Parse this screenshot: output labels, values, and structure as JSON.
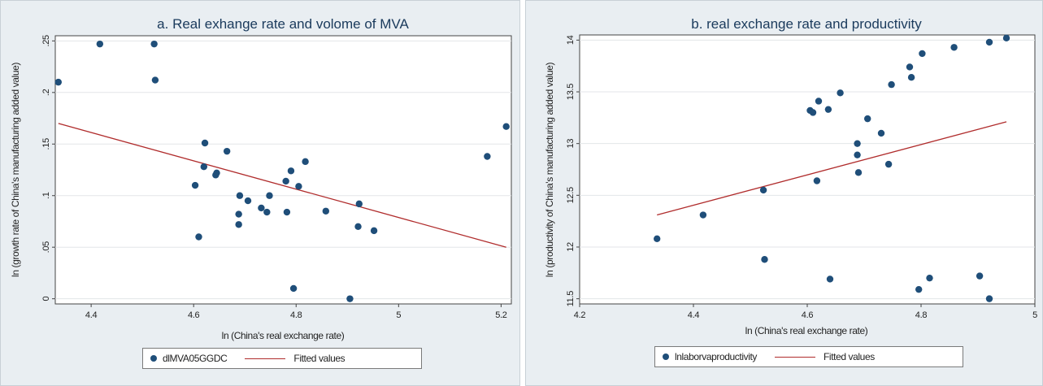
{
  "chart_data": [
    {
      "type": "scatter",
      "title": "a. Real exhange rate and volome of MVA",
      "xlabel": "ln (China's real exchange rate)",
      "ylabel": "ln (growth rate of China's manufacturing added value)",
      "xlim": [
        4.33,
        5.22
      ],
      "ylim": [
        -0.005,
        0.255
      ],
      "xticks": [
        4.4,
        4.6,
        4.8,
        5,
        5.2
      ],
      "xtick_labels": [
        "4.4",
        "4.6",
        "4.8",
        "5",
        "5.2"
      ],
      "yticks": [
        0,
        0.05,
        0.1,
        0.15,
        0.2,
        0.25
      ],
      "ytick_labels": [
        "0",
        ".05",
        ".1",
        ".15",
        ".2",
        ".25"
      ],
      "grid": true,
      "legend_position": "bottom",
      "series": [
        {
          "name": "dlMVA05GGDC",
          "kind": "points",
          "color": "#1f4e79",
          "points": [
            [
              4.336,
              0.21
            ],
            [
              4.417,
              0.247
            ],
            [
              4.523,
              0.247
            ],
            [
              4.525,
              0.212
            ],
            [
              4.622,
              0.151
            ],
            [
              4.62,
              0.128
            ],
            [
              4.643,
              0.12
            ],
            [
              4.645,
              0.122
            ],
            [
              4.665,
              0.143
            ],
            [
              4.603,
              0.11
            ],
            [
              4.61,
              0.06
            ],
            [
              4.69,
              0.1
            ],
            [
              4.688,
              0.082
            ],
            [
              4.688,
              0.072
            ],
            [
              4.706,
              0.095
            ],
            [
              4.732,
              0.088
            ],
            [
              4.743,
              0.084
            ],
            [
              4.748,
              0.1
            ],
            [
              4.78,
              0.114
            ],
            [
              4.79,
              0.124
            ],
            [
              4.782,
              0.084
            ],
            [
              4.805,
              0.109
            ],
            [
              4.818,
              0.133
            ],
            [
              4.858,
              0.085
            ],
            [
              4.923,
              0.092
            ],
            [
              4.921,
              0.07
            ],
            [
              4.952,
              0.066
            ],
            [
              4.795,
              0.01
            ],
            [
              4.905,
              0.0
            ],
            [
              5.173,
              0.138
            ],
            [
              5.21,
              0.167
            ]
          ]
        },
        {
          "name": "Fitted values",
          "kind": "line",
          "color": "#b02c2c",
          "points": [
            [
              4.336,
              0.17
            ],
            [
              5.21,
              0.05
            ]
          ]
        }
      ]
    },
    {
      "type": "scatter",
      "title": "b. real exchange rate and productivity",
      "xlabel": "ln (China's real exchange rate)",
      "ylabel": "ln (productivity of China's manufacturing added value)",
      "xlim": [
        4.2,
        5
      ],
      "ylim": [
        11.45,
        14.05
      ],
      "xticks": [
        4.2,
        4.4,
        4.6,
        4.8,
        5
      ],
      "xtick_labels": [
        "4.2",
        "4.4",
        "4.6",
        "4.8",
        "5"
      ],
      "yticks": [
        11.5,
        12,
        12.5,
        13,
        13.5,
        14
      ],
      "ytick_labels": [
        "11.5",
        "12",
        "12.5",
        "13",
        "13.5",
        "14"
      ],
      "grid": true,
      "legend_position": "bottom",
      "series": [
        {
          "name": "lnlaborvaproductivity",
          "kind": "points",
          "color": "#1f4e79",
          "points": [
            [
              4.336,
              12.08
            ],
            [
              4.417,
              12.31
            ],
            [
              4.523,
              12.55
            ],
            [
              4.525,
              11.88
            ],
            [
              4.605,
              13.32
            ],
            [
              4.61,
              13.3
            ],
            [
              4.62,
              13.41
            ],
            [
              4.637,
              13.33
            ],
            [
              4.658,
              13.49
            ],
            [
              4.617,
              12.64
            ],
            [
              4.64,
              11.69
            ],
            [
              4.688,
              13.0
            ],
            [
              4.688,
              12.89
            ],
            [
              4.69,
              12.72
            ],
            [
              4.706,
              13.24
            ],
            [
              4.73,
              13.1
            ],
            [
              4.743,
              12.8
            ],
            [
              4.748,
              13.57
            ],
            [
              4.78,
              13.74
            ],
            [
              4.783,
              13.64
            ],
            [
              4.802,
              13.87
            ],
            [
              4.858,
              13.93
            ],
            [
              4.92,
              13.98
            ],
            [
              4.95,
              14.02
            ],
            [
              4.796,
              11.59
            ],
            [
              4.815,
              11.7
            ],
            [
              4.903,
              11.72
            ],
            [
              4.92,
              11.5
            ]
          ]
        },
        {
          "name": "Fitted values",
          "kind": "line",
          "color": "#b02c2c",
          "points": [
            [
              4.336,
              12.31
            ],
            [
              4.95,
              13.21
            ]
          ]
        }
      ]
    }
  ],
  "legends": [
    {
      "items": [
        "dlMVA05GGDC",
        "Fitted values"
      ]
    },
    {
      "items": [
        "lnlaborvaproductivity",
        "Fitted values"
      ]
    }
  ]
}
